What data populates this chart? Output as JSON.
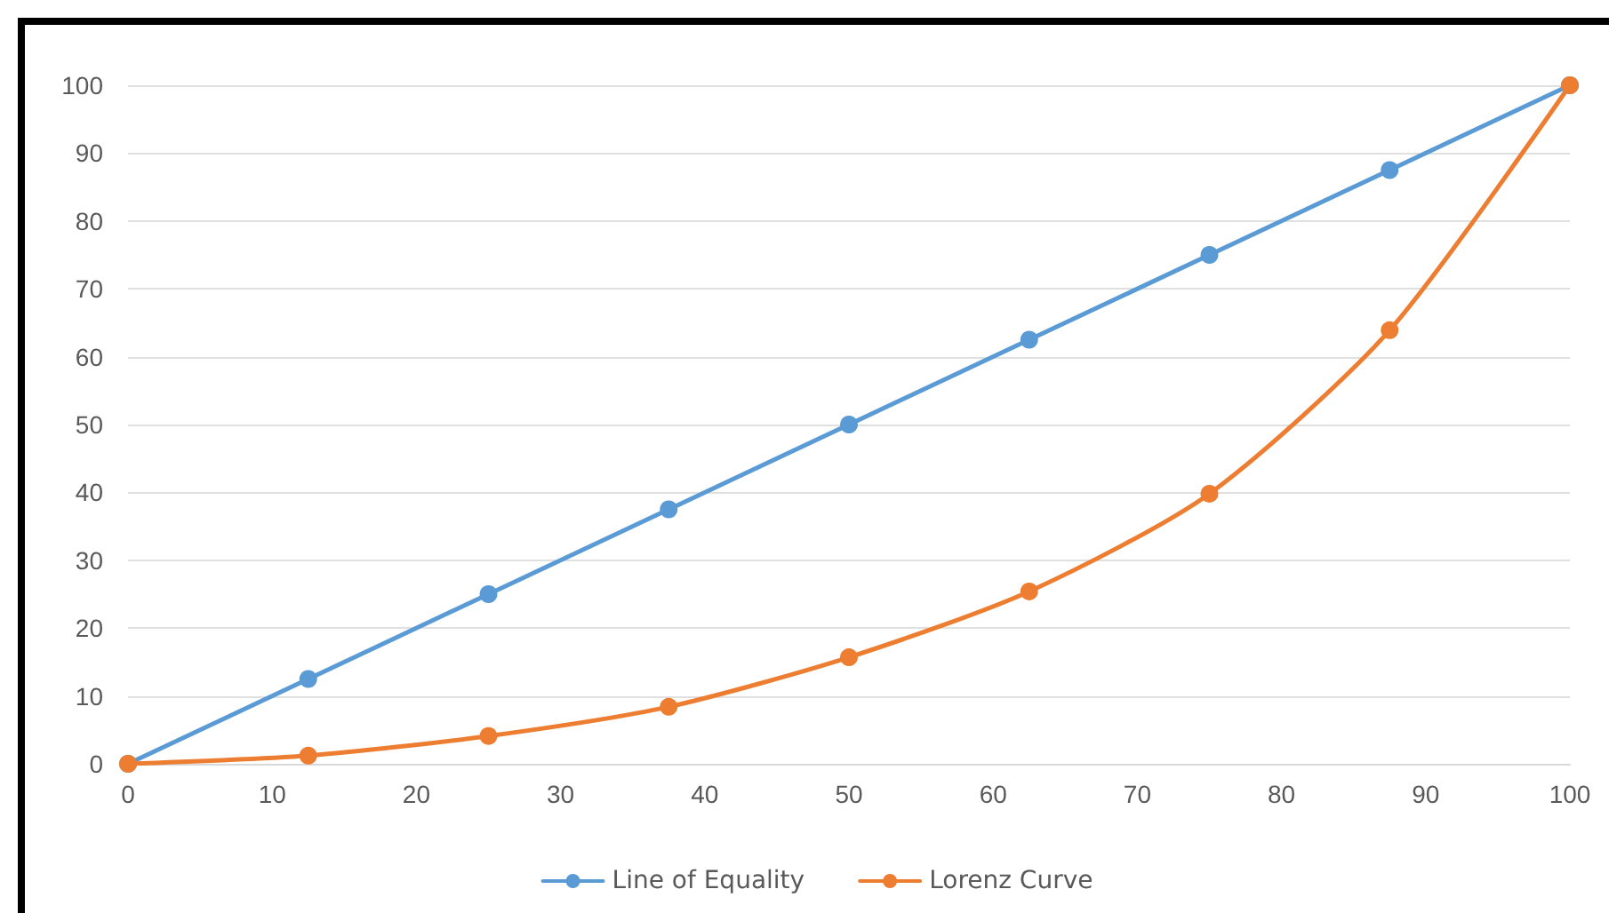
{
  "chart_data": {
    "type": "line",
    "x": [
      0,
      12.5,
      25,
      37.5,
      50,
      62.5,
      75,
      87.5,
      100
    ],
    "series": [
      {
        "name": "Line of Equality",
        "color": "#5b9bd5",
        "values": [
          0,
          12.5,
          25,
          37.5,
          50,
          62.5,
          75,
          87.5,
          100
        ]
      },
      {
        "name": "Lorenz Curve",
        "color": "#ed7d31",
        "values": [
          0,
          1.2,
          4.1,
          8.4,
          15.7,
          25.4,
          39.8,
          63.9,
          100
        ]
      }
    ],
    "xlim": [
      0,
      100
    ],
    "xticks": [
      0,
      10,
      20,
      30,
      40,
      50,
      60,
      70,
      80,
      90,
      100
    ],
    "ylim": [
      0,
      100
    ],
    "yticks": [
      0,
      10,
      20,
      30,
      40,
      50,
      60,
      70,
      80,
      90,
      100
    ],
    "grid": "y",
    "legend": "bottom",
    "marker": "circle",
    "line_style": "solid"
  }
}
